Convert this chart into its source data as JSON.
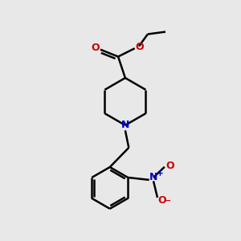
{
  "bg_color": "#e8e8e8",
  "bond_color": "#000000",
  "N_color": "#0000cc",
  "O_color": "#cc0000",
  "bond_width": 1.8,
  "fig_size": [
    3.0,
    3.0
  ],
  "dpi": 100,
  "xlim": [
    0,
    10
  ],
  "ylim": [
    0,
    10
  ]
}
